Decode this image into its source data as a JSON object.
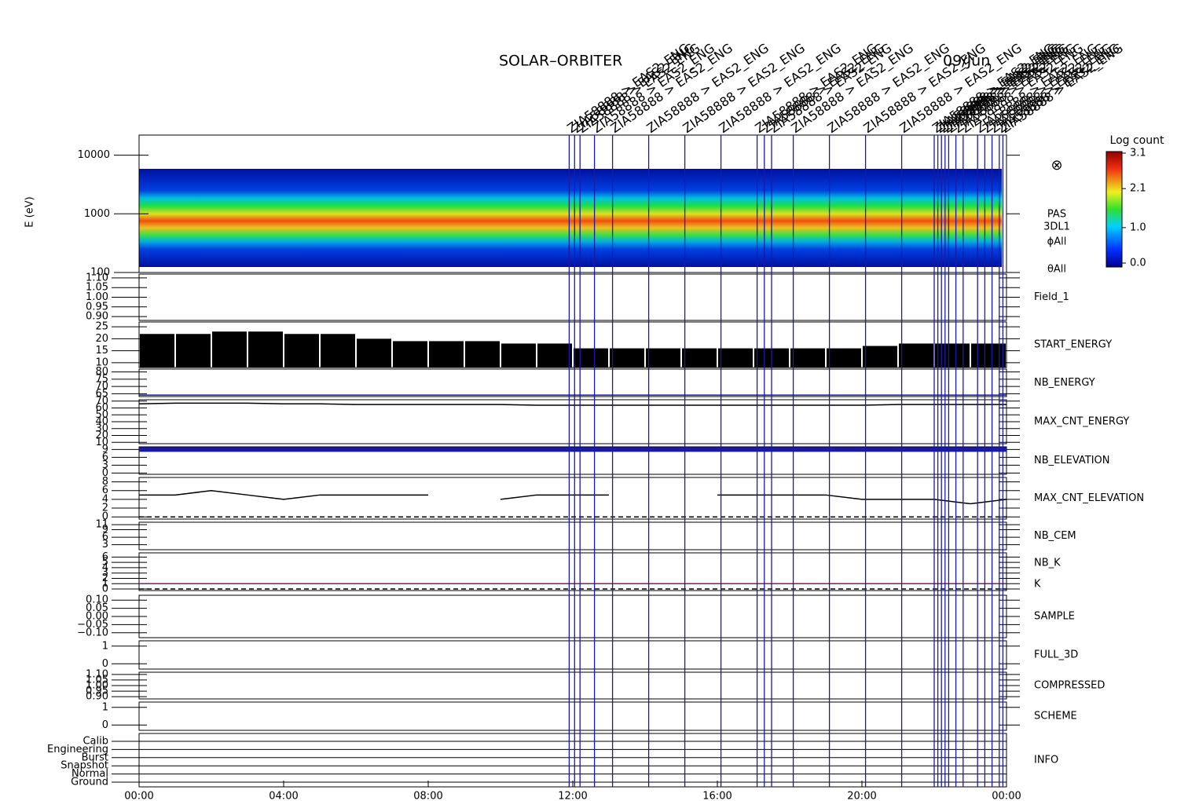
{
  "title": "SOLAR–ORBITER",
  "date": "09/Jun",
  "event_label": "ZIA58888 > EAS2_ENG",
  "xlim": [
    0,
    24
  ],
  "xticks": [
    {
      "value": 0,
      "label": "00:00"
    },
    {
      "value": 4,
      "label": "04:00"
    },
    {
      "value": 8,
      "label": "08:00"
    },
    {
      "value": 12,
      "label": "12:00"
    },
    {
      "value": 16,
      "label": "16:00"
    },
    {
      "value": 20,
      "label": "20:00"
    },
    {
      "value": 24,
      "label": "00:00"
    }
  ],
  "x": [
    0,
    1,
    2,
    3,
    4,
    5,
    6,
    7,
    8,
    9,
    10,
    11,
    12,
    13,
    14,
    15,
    16,
    17,
    18,
    19,
    20,
    21,
    22,
    23,
    24
  ],
  "events": [
    11.9,
    12.05,
    12.2,
    12.6,
    13.1,
    14.1,
    15.1,
    16.1,
    17.1,
    17.3,
    17.5,
    18.1,
    19.1,
    20.1,
    21.1,
    22.0,
    22.1,
    22.2,
    22.3,
    22.4,
    22.6,
    22.8,
    23.2,
    23.4,
    23.6,
    23.8,
    23.9
  ],
  "spectrogram": {
    "ylabel": "E (eV)",
    "log": true,
    "ylim": [
      100,
      22000
    ],
    "yticks": [
      10000,
      1000,
      100
    ],
    "labels": [
      "PAS",
      "3DL1",
      "ϕAll",
      "θAll"
    ],
    "colorbar": {
      "title": "Log count",
      "ylim": [
        0,
        3.1
      ],
      "ticks": [
        3.1,
        2.1,
        {
          "value": 1.0,
          "label": "1.0"
        },
        {
          "value": 0.0,
          "label": "0.0"
        }
      ]
    }
  },
  "panels": [
    {
      "labels": [
        "Field_1"
      ],
      "label_colors": [
        "#1a1aa8"
      ],
      "ylim": [
        0.88,
        1.12
      ],
      "yticks": [
        {
          "value": 1.1,
          "label": "1.10"
        },
        {
          "value": 1.05,
          "label": "1.05"
        },
        {
          "value": 1.0,
          "label": "1.00"
        },
        {
          "value": 0.95,
          "label": "0.95"
        },
        {
          "value": 0.9,
          "label": "0.90"
        }
      ],
      "series": []
    },
    {
      "labels": [
        "START_ENERGY"
      ],
      "label_colors": [
        "#000000"
      ],
      "ylim": [
        8,
        27
      ],
      "yticks": [
        25,
        20,
        15,
        10
      ],
      "series": [
        {
          "style": "bars",
          "color": "#000000",
          "values": [
            22,
            22,
            23,
            23,
            22,
            22,
            20,
            19,
            19,
            19,
            18,
            18,
            16,
            16,
            16,
            16,
            16,
            16,
            16,
            16,
            17,
            18,
            18,
            18,
            18
          ]
        }
      ]
    },
    {
      "labels": [
        "NB_ENERGY"
      ],
      "label_colors": [
        "#1a1aa8"
      ],
      "ylim": [
        63,
        82
      ],
      "yticks": [
        80,
        75,
        70,
        65
      ],
      "series": [
        {
          "style": "line",
          "color": "#1a1aa8",
          "values": [
            64,
            64,
            64,
            64,
            64,
            64,
            64,
            64,
            64,
            64,
            64,
            64,
            64,
            64,
            64,
            64,
            64,
            64,
            64,
            64,
            64,
            64,
            64,
            64,
            64
          ]
        }
      ]
    },
    {
      "labels": [
        "MAX_CNT_ENERGY"
      ],
      "label_colors": [
        "#000000"
      ],
      "ylim": [
        8,
        72
      ],
      "yticks": [
        70,
        60,
        50,
        40,
        30,
        20,
        10
      ],
      "series": [
        {
          "style": "line",
          "color": "#000000",
          "values": [
            66,
            67,
            67,
            67,
            66,
            66,
            65,
            65,
            65,
            65,
            65,
            64,
            64,
            64,
            64,
            64,
            64,
            64,
            64,
            64,
            64,
            65,
            65,
            65,
            65
          ]
        }
      ]
    },
    {
      "labels": [
        "NB_ELEVATION"
      ],
      "label_colors": [
        "#1a1aa8"
      ],
      "ylim": [
        -0.5,
        10
      ],
      "yticks": [
        9,
        6,
        3,
        0
      ],
      "series": [
        {
          "style": "thick",
          "color": "#1a1aa8",
          "values": [
            9,
            9,
            9,
            9,
            9,
            9,
            9,
            9,
            9,
            9,
            9,
            9,
            9,
            9,
            9,
            9,
            9,
            9,
            9,
            9,
            9,
            9,
            9,
            9,
            9
          ]
        }
      ]
    },
    {
      "labels": [
        "MAX_CNT_ELEVATION"
      ],
      "label_colors": [
        "#000000"
      ],
      "ylim": [
        -0.5,
        9
      ],
      "yticks": [
        8,
        6,
        4,
        2,
        0
      ],
      "series": [
        {
          "style": "line",
          "color": "#000000",
          "values": [
            5,
            5,
            6,
            5,
            4,
            5,
            5,
            5,
            5,
            null,
            4,
            5,
            5,
            5,
            null,
            null,
            5,
            5,
            5,
            5,
            4,
            4,
            4,
            3,
            4
          ]
        },
        {
          "style": "dashed",
          "color": "#000000",
          "values": [
            0,
            0,
            0,
            0,
            0,
            0,
            0,
            0,
            0,
            0,
            0,
            0,
            0,
            0,
            0,
            0,
            0,
            0,
            0,
            0,
            0,
            0,
            0,
            0,
            0
          ]
        }
      ]
    },
    {
      "labels": [
        "NB_CEM"
      ],
      "label_colors": [
        "#1a1aa8"
      ],
      "ylim": [
        1,
        12
      ],
      "yticks": [
        11,
        9,
        6,
        3
      ],
      "series": []
    },
    {
      "labels": [
        "NB_K",
        "K"
      ],
      "label_colors": [
        "#c01010",
        "#1a1aa8"
      ],
      "ylim": [
        -0.3,
        6.8
      ],
      "yticks": [
        6,
        5,
        4,
        3,
        2,
        1,
        0
      ],
      "series": [
        {
          "style": "line",
          "color": "#8a1a6a",
          "values": [
            1,
            1,
            1,
            1,
            1,
            1,
            1,
            1,
            1,
            1,
            1,
            1,
            1,
            1,
            1,
            1,
            1,
            1,
            1,
            1,
            1,
            1,
            1,
            1,
            1
          ]
        },
        {
          "style": "dashed",
          "color": "#000000",
          "values": [
            0,
            0,
            0,
            0,
            0,
            0,
            0,
            0,
            0,
            0,
            0,
            0,
            0,
            0,
            0,
            0,
            0,
            0,
            0,
            0,
            0,
            0,
            0,
            0,
            0
          ]
        }
      ]
    },
    {
      "labels": [
        "SAMPLE"
      ],
      "label_colors": [
        "#1a1aa8"
      ],
      "ylim": [
        -0.13,
        0.13
      ],
      "yticks": [
        {
          "value": 0.1,
          "label": "0.10"
        },
        {
          "value": 0.05,
          "label": "0.05"
        },
        {
          "value": 0.0,
          "label": "0.00"
        },
        {
          "value": -0.05,
          "label": "−0.05"
        },
        {
          "value": -0.1,
          "label": "−0.10"
        }
      ],
      "series": []
    },
    {
      "labels": [
        "FULL_3D"
      ],
      "label_colors": [
        "#1a1aa8"
      ],
      "ylim": [
        -0.3,
        1.3
      ],
      "yticks": [
        1,
        0
      ],
      "series": []
    },
    {
      "labels": [
        "COMPRESSED"
      ],
      "label_colors": [
        "#000000"
      ],
      "ylim": [
        0.88,
        1.12
      ],
      "yticks": [
        {
          "value": 1.1,
          "label": "1.10"
        },
        {
          "value": 1.05,
          "label": "1.05"
        },
        {
          "value": 1.0,
          "label": "1.00"
        },
        {
          "value": 0.95,
          "label": "0.95"
        },
        {
          "value": 0.9,
          "label": "0.90"
        }
      ],
      "series": []
    },
    {
      "labels": [
        "SCHEME"
      ],
      "label_colors": [
        "#000000"
      ],
      "ylim": [
        -0.3,
        1.3
      ],
      "yticks": [
        1,
        0
      ],
      "series": []
    },
    {
      "labels": [
        "INFO"
      ],
      "label_colors": [
        "#000000"
      ],
      "ycategories": [
        "Calib",
        "Engineering",
        "Burst",
        "Snapshot",
        "Normal",
        "Ground"
      ],
      "series": []
    }
  ]
}
